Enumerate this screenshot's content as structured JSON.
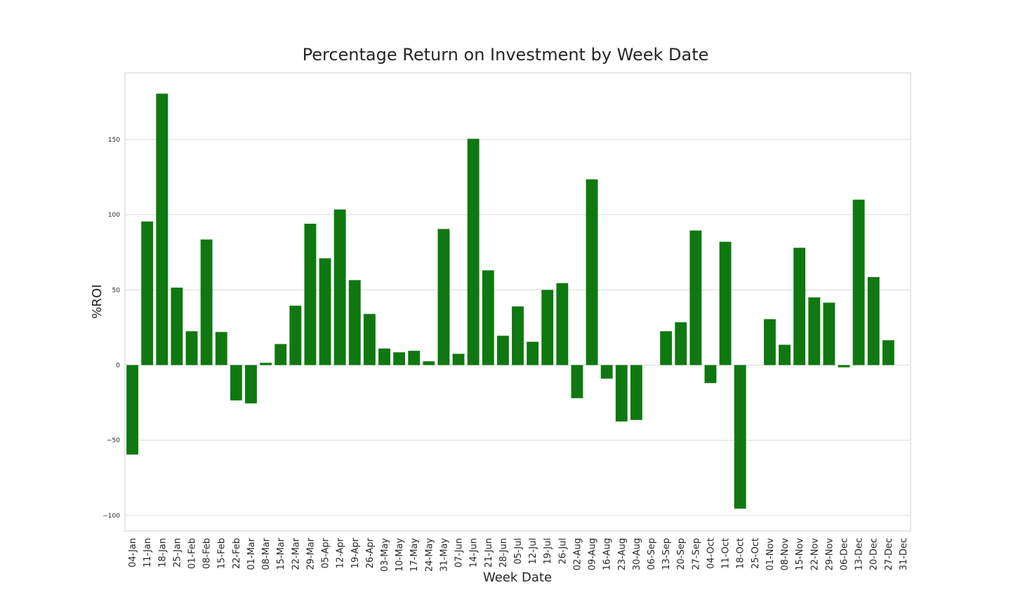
{
  "chart_data": {
    "type": "bar",
    "title": "Percentage Return on Investment by Week Date",
    "xlabel": "Week Date",
    "ylabel": "%ROI",
    "ylim": [
      -110,
      180
    ],
    "yticks": [
      -100,
      -50,
      0,
      50,
      100,
      150
    ],
    "ytick_labels": [
      "−100",
      "−50",
      "0",
      "50",
      "100",
      "150"
    ],
    "grid": true,
    "bar_color": "#107810",
    "categories": [
      "04-Jan",
      "11-Jan",
      "18-Jan",
      "25-Jan",
      "01-Feb",
      "08-Feb",
      "15-Feb",
      "22-Feb",
      "01-Mar",
      "08-Mar",
      "15-Mar",
      "22-Mar",
      "29-Mar",
      "05-Apr",
      "12-Apr",
      "19-Apr",
      "26-Apr",
      "03-May",
      "10-May",
      "17-May",
      "24-May",
      "31-May",
      "07-Jun",
      "14-Jun",
      "21-Jun",
      "28-Jun",
      "05-Jul",
      "12-Jul",
      "19-Jul",
      "26-Jul",
      "02-Aug",
      "09-Aug",
      "16-Aug",
      "23-Aug",
      "30-Aug",
      "06-Sep",
      "13-Sep",
      "20-Sep",
      "27-Sep",
      "04-Oct",
      "11-Oct",
      "18-Oct",
      "25-Oct",
      "01-Nov",
      "08-Nov",
      "15-Nov",
      "22-Nov",
      "29-Nov",
      "06-Dec",
      "13-Dec",
      "20-Dec",
      "27-Dec",
      "31-Dec"
    ],
    "values": [
      -59.5,
      95.5,
      180.5,
      51.5,
      22.5,
      83.5,
      22.0,
      -23.5,
      -25.5,
      1.5,
      14.0,
      39.5,
      94.0,
      71.0,
      103.5,
      56.5,
      34.0,
      11.0,
      8.5,
      9.5,
      2.5,
      90.5,
      7.5,
      150.5,
      63.0,
      19.5,
      39.0,
      15.5,
      50.0,
      54.5,
      -22.0,
      123.5,
      -9.0,
      -37.5,
      -36.5,
      0,
      22.5,
      28.5,
      89.5,
      -12.0,
      82.0,
      -95.5,
      0,
      30.5,
      13.5,
      78.0,
      45.0,
      41.5,
      -1.5,
      110.0,
      58.5,
      16.5,
      0
    ]
  }
}
